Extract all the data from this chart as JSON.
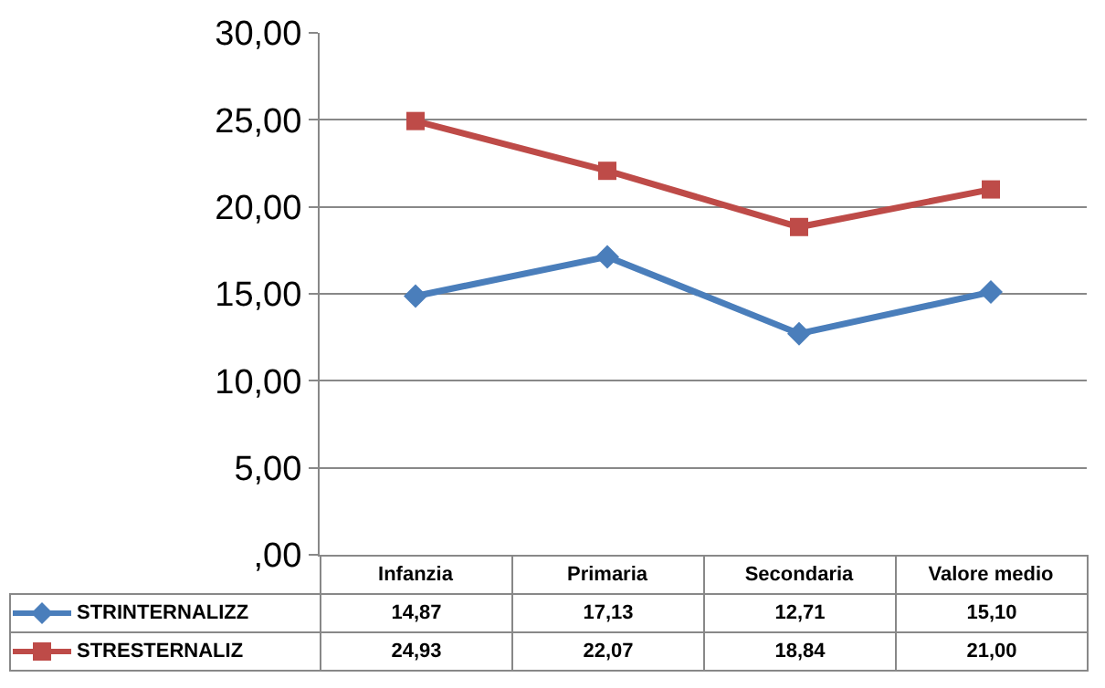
{
  "chart_data": {
    "type": "line",
    "categories": [
      "Infanzia",
      "Primaria",
      "Secondaria",
      "Valore medio"
    ],
    "series": [
      {
        "name": "STRINTERNALIZZ",
        "color": "#4a7ebb",
        "marker": "diamond",
        "values": [
          14.87,
          17.13,
          12.71,
          15.1
        ],
        "value_labels": [
          "14,87",
          "17,13",
          "12,71",
          "15,10"
        ]
      },
      {
        "name": "STRESTERNALIZ",
        "color": "#be4b48",
        "marker": "square",
        "values": [
          24.93,
          22.07,
          18.84,
          21.0
        ],
        "value_labels": [
          "24,93",
          "22,07",
          "18,84",
          "21,00"
        ]
      }
    ],
    "ylim": [
      0,
      30
    ],
    "yticks": [
      {
        "value": 0,
        "label": ",00"
      },
      {
        "value": 5,
        "label": "5,00"
      },
      {
        "value": 10,
        "label": "10,00"
      },
      {
        "value": 15,
        "label": "15,00"
      },
      {
        "value": 20,
        "label": "20,00"
      },
      {
        "value": 25,
        "label": "25,00"
      },
      {
        "value": 30,
        "label": "30,00"
      }
    ],
    "grid": "y",
    "legend": "bottom",
    "line_style": "solid"
  }
}
